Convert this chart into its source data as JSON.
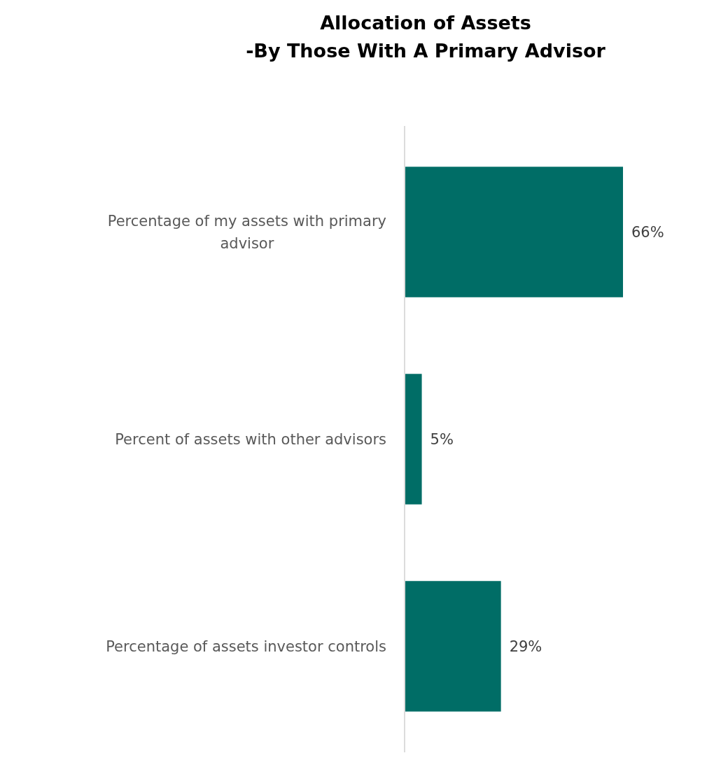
{
  "chart_data": {
    "type": "bar",
    "orientation": "horizontal",
    "title": "Allocation of Assets",
    "subtitle": "-By Those With A Primary Advisor",
    "categories": [
      "Percentage of my assets with primary advisor",
      "Percent of assets with other advisors",
      "Percentage of assets investor controls"
    ],
    "values": [
      66,
      5,
      29
    ],
    "color": "#006d66",
    "value_labels": [
      "66%",
      "5%",
      "29%"
    ]
  }
}
